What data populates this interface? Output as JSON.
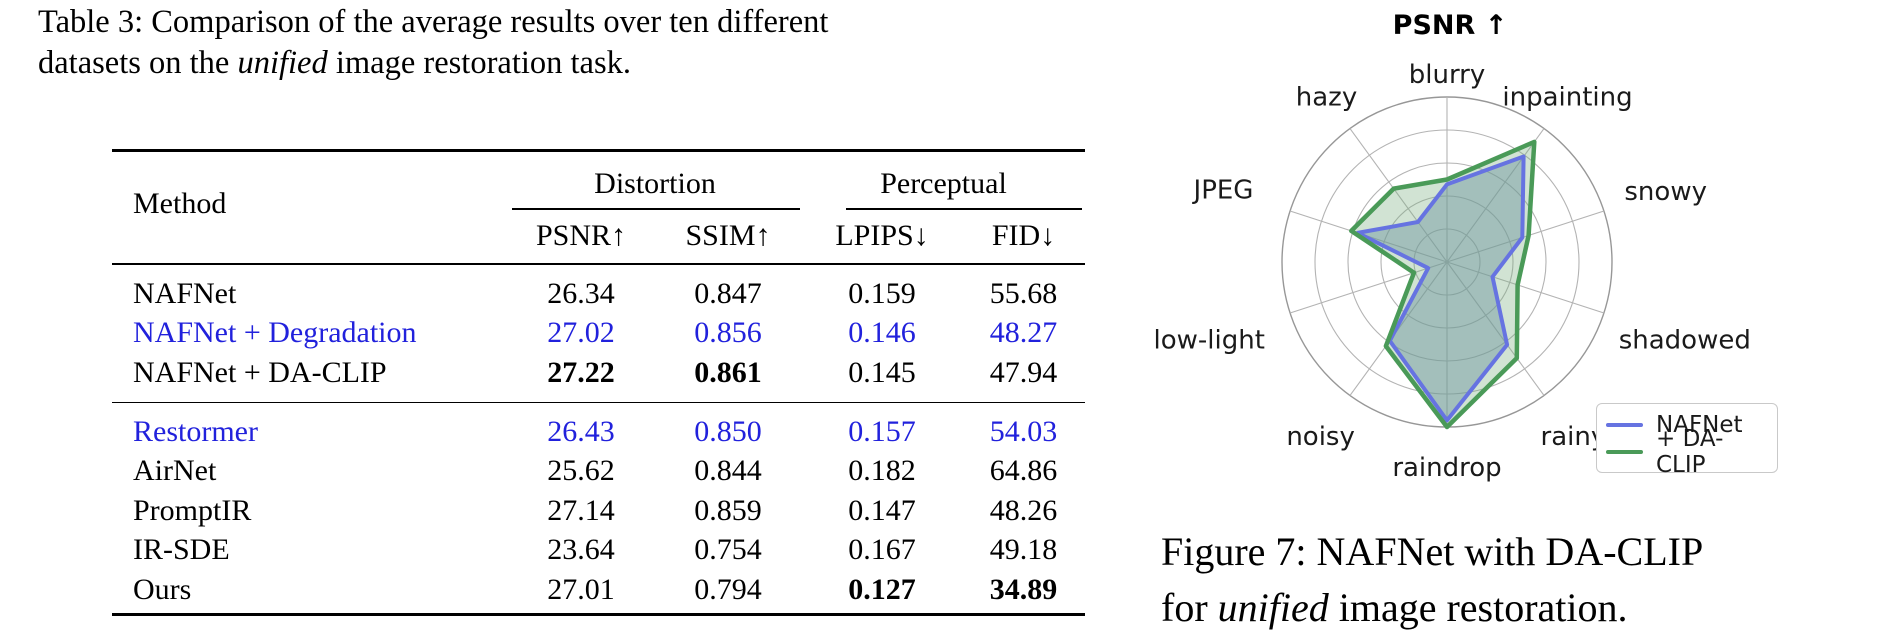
{
  "table_caption": {
    "line1": "Table 3: Comparison of the average results over ten different",
    "line2_pre": "datasets on the ",
    "line2_italic": "unified",
    "line2_post": " image restoration task."
  },
  "table": {
    "method_header": "Method",
    "col_group_headers": [
      {
        "label": "Distortion"
      },
      {
        "label": "Perceptual"
      }
    ],
    "sub_headers": [
      "PSNR↑",
      "SSIM↑",
      "LPIPS↓",
      "FID↓"
    ],
    "highlight_color": "#2121dc",
    "groups": [
      {
        "rows": [
          {
            "method": "NAFNet",
            "values": [
              "26.34",
              "0.847",
              "0.159",
              "55.68"
            ],
            "color": "black",
            "bold": []
          },
          {
            "method": "NAFNet + Degradation",
            "values": [
              "27.02",
              "0.856",
              "0.146",
              "48.27"
            ],
            "color": "blue",
            "bold": []
          },
          {
            "method": "NAFNet + DA-CLIP",
            "values": [
              "27.22",
              "0.861",
              "0.145",
              "47.94"
            ],
            "color": "black",
            "bold": [
              0,
              1
            ]
          }
        ]
      },
      {
        "rows": [
          {
            "method": "Restormer",
            "values": [
              "26.43",
              "0.850",
              "0.157",
              "54.03"
            ],
            "color": "blue",
            "bold": []
          },
          {
            "method": "AirNet",
            "values": [
              "25.62",
              "0.844",
              "0.182",
              "64.86"
            ],
            "color": "black",
            "bold": []
          },
          {
            "method": "PromptIR",
            "values": [
              "27.14",
              "0.859",
              "0.147",
              "48.26"
            ],
            "color": "black",
            "bold": []
          },
          {
            "method": "IR-SDE",
            "values": [
              "23.64",
              "0.754",
              "0.167",
              "49.18"
            ],
            "color": "black",
            "bold": []
          },
          {
            "method": "Ours",
            "values": [
              "27.01",
              "0.794",
              "0.127",
              "34.89"
            ],
            "color": "black",
            "bold": [
              2,
              3
            ]
          }
        ]
      }
    ]
  },
  "chart_data": {
    "type": "radar",
    "title": "PSNR ↑",
    "categories": [
      "blurry",
      "inpainting",
      "snowy",
      "shadowed",
      "rainy",
      "raindrop",
      "noisy",
      "low-light",
      "JPEG",
      "hazy"
    ],
    "series": [
      {
        "name": "NAFNet",
        "line_color": "#6673e1",
        "fill_color": "rgba(100,132,176,0.45)",
        "values": [
          0.47,
          0.79,
          0.48,
          0.29,
          0.62,
          0.96,
          0.59,
          0.12,
          0.57,
          0.3
        ]
      },
      {
        "name": "+ DA-CLIP",
        "line_color": "#4a9a58",
        "fill_color": "rgba(122,176,128,0.35)",
        "values": [
          0.5,
          0.9,
          0.52,
          0.45,
          0.72,
          1.0,
          0.63,
          0.21,
          0.61,
          0.55
        ]
      }
    ],
    "r_range": [
      0,
      1
    ],
    "gridlines": [
      0.2,
      0.4,
      0.6,
      0.8,
      1.0
    ],
    "grid_color": "#b3b3b3",
    "outer_ring_color": "#979797",
    "legend_position": "lower right",
    "scale_note": "no radial tick labels shown; values are fractions of outer ring"
  },
  "figure_caption": {
    "line1": "Figure 7: NAFNet with DA-CLIP",
    "line2_pre": "for ",
    "line2_italic": "unified",
    "line2_post": " image restoration."
  }
}
